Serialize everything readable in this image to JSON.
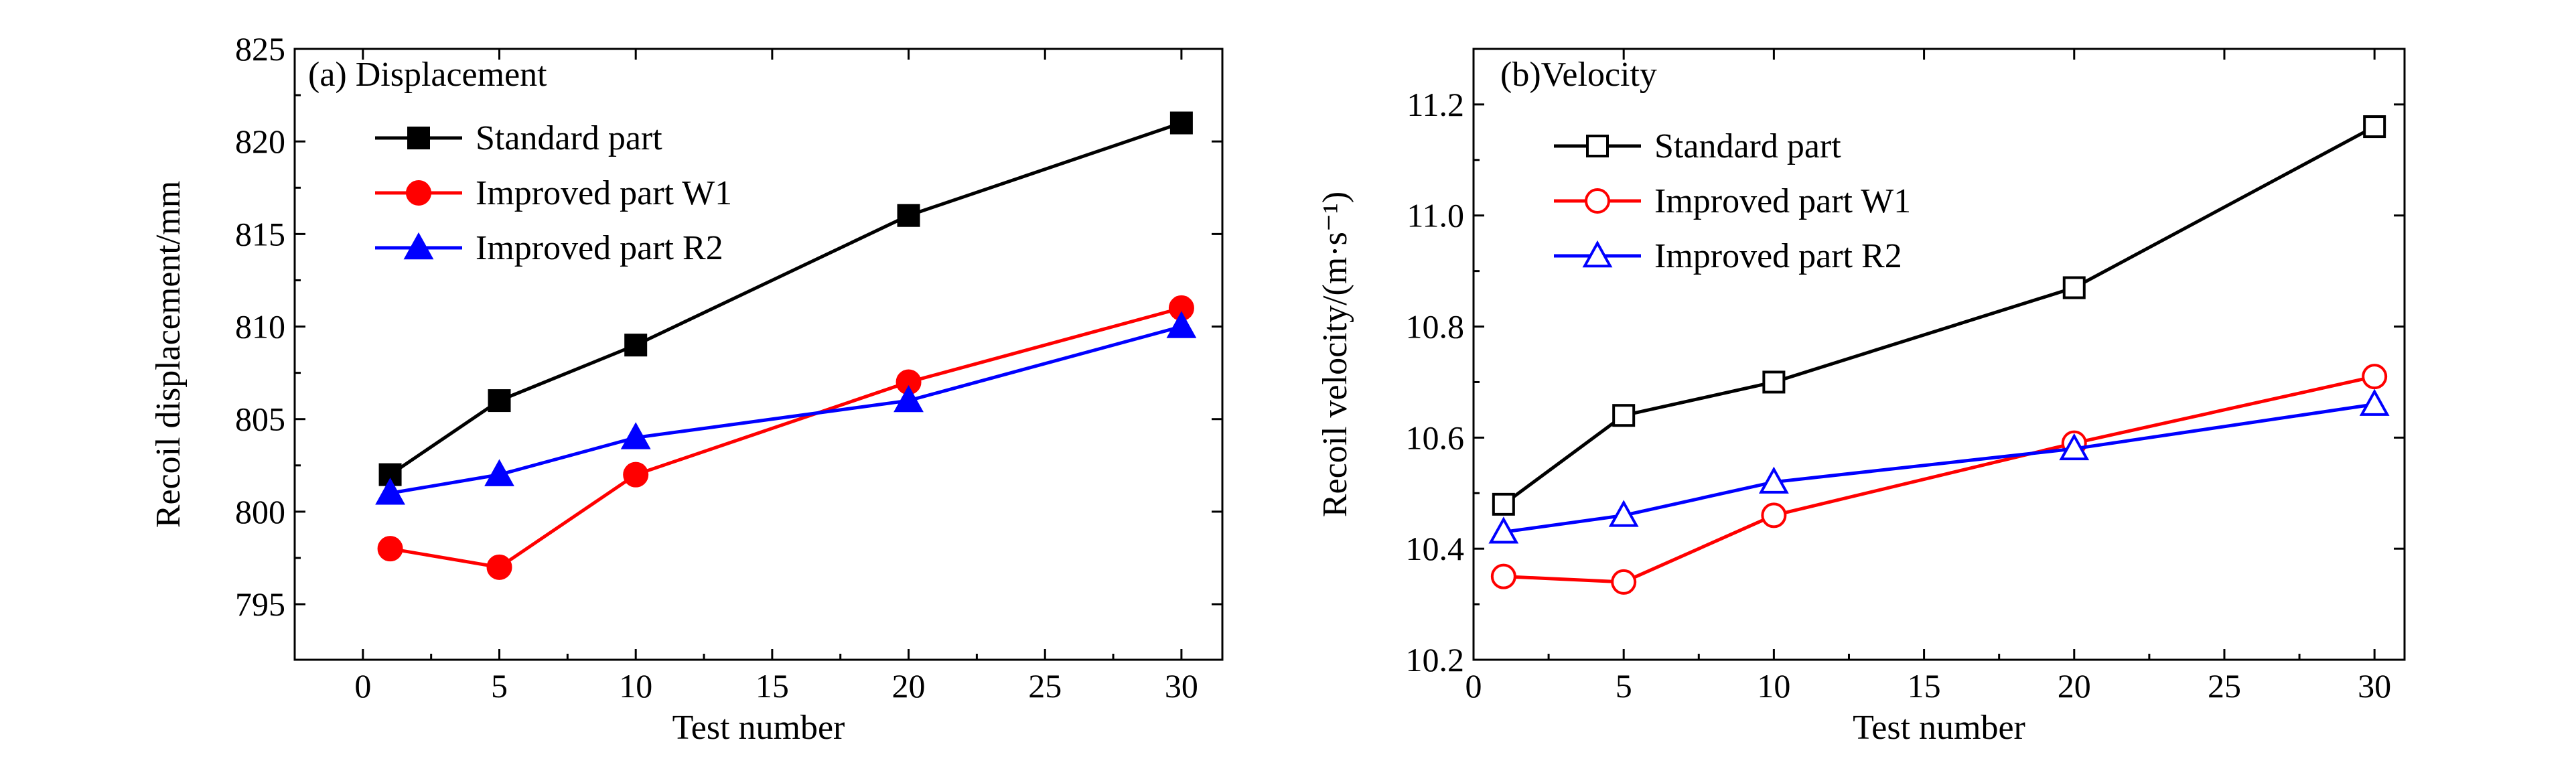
{
  "chart_data": [
    {
      "type": "line",
      "panel_label": "(a) Displacement",
      "xlabel": "Test number",
      "ylabel": "Recoil displacement/mm",
      "xlim": [
        -2.5,
        31.5
      ],
      "ylim": [
        792,
        825
      ],
      "xticks": [
        0,
        5,
        10,
        15,
        20,
        25,
        30
      ],
      "yticks": [
        795,
        800,
        805,
        810,
        815,
        820,
        825
      ],
      "x": [
        1,
        5,
        10,
        20,
        30
      ],
      "markers_filled": true,
      "legend_position": "top-left",
      "series": [
        {
          "name": "Standard part",
          "color": "#000000",
          "marker": "square",
          "values": [
            802,
            806,
            809,
            816,
            821
          ]
        },
        {
          "name": "Improved part W1",
          "color": "#ff0000",
          "marker": "circle",
          "values": [
            798,
            797,
            802,
            807,
            811
          ]
        },
        {
          "name": "Improved part R2",
          "color": "#0000ff",
          "marker": "triangle",
          "values": [
            801,
            802,
            804,
            806,
            810
          ]
        }
      ]
    },
    {
      "type": "line",
      "panel_label": "(b)Velocity",
      "xlabel": "Test number",
      "ylabel": "Recoil velocity/(m·s⁻¹)",
      "xlim": [
        0,
        31
      ],
      "ylim": [
        10.2,
        11.3
      ],
      "xticks": [
        0,
        5,
        10,
        15,
        20,
        25,
        30
      ],
      "yticks": [
        10.2,
        10.4,
        10.6,
        10.8,
        11.0,
        11.2
      ],
      "ytick_labels": [
        "10.2",
        "10.4",
        "10.6",
        "10.8",
        "11.0",
        "11.2"
      ],
      "x": [
        1,
        5,
        10,
        20,
        30
      ],
      "markers_filled": false,
      "legend_position": "top-left",
      "series": [
        {
          "name": "Standard part",
          "color": "#000000",
          "marker": "square",
          "values": [
            10.48,
            10.64,
            10.7,
            10.87,
            11.16
          ]
        },
        {
          "name": "Improved part W1",
          "color": "#ff0000",
          "marker": "circle",
          "values": [
            10.35,
            10.34,
            10.46,
            10.59,
            10.71
          ]
        },
        {
          "name": "Improved part R2",
          "color": "#0000ff",
          "marker": "triangle",
          "values": [
            10.43,
            10.46,
            10.52,
            10.58,
            10.66
          ]
        }
      ]
    }
  ]
}
